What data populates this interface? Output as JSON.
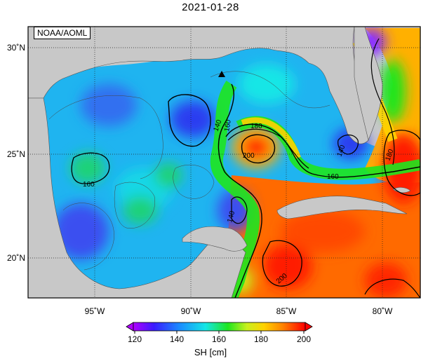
{
  "title": "2021-01-28",
  "source_label": "NOAA/AOML",
  "colorbar": {
    "label": "SH [cm]",
    "ticks": [
      "120",
      "140",
      "160",
      "180",
      "200"
    ],
    "stops": [
      "#b000ff",
      "#3a1cff",
      "#1a8cff",
      "#14e6e6",
      "#1ee61e",
      "#c8f01e",
      "#ffd200",
      "#ff8200",
      "#ff2200",
      "#ff0000"
    ]
  },
  "axes": {
    "x_ticks": [
      "95˚W",
      "90˚W",
      "85˚W",
      "80˚W"
    ],
    "y_ticks": [
      "30˚N",
      "25˚N",
      "20˚N"
    ]
  },
  "contour_labels": [
    "160",
    "140",
    "180",
    "200",
    "160",
    "180",
    "160",
    "140",
    "140",
    "200"
  ],
  "marker": {
    "name": "station-marker",
    "shape": "triangle"
  },
  "colors": {
    "land": "#c8c8c8",
    "frame": "#000000"
  }
}
